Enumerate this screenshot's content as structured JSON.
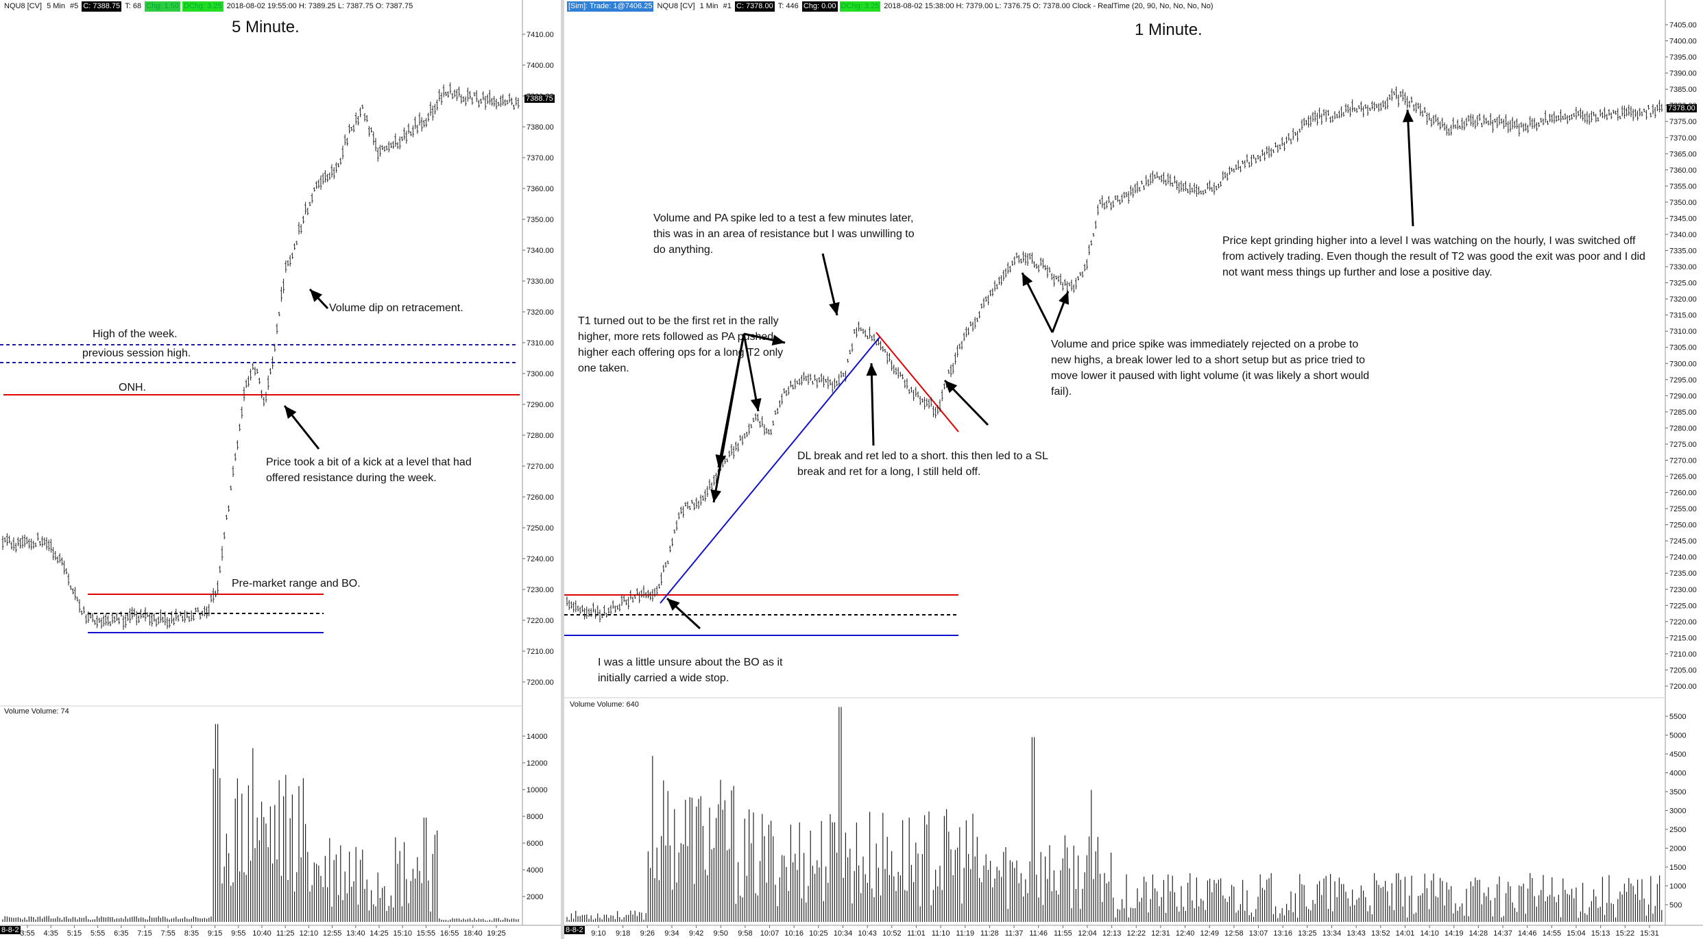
{
  "left": {
    "header": {
      "symbol": "NQU8 [CV]",
      "interval": "5 Min",
      "num": "#5",
      "close": "C: 7388.75",
      "tick": "T: 68",
      "chg": "Chg: 1.50",
      "dchg": "DChg: 3.25",
      "info": "2018-08-02 19:55:00 H: 7389.25 L: 7387.75 O: 7387.75"
    },
    "title": "5 Minute.",
    "last_price": "7388.75",
    "volume_label": "Volume  Volume: 74",
    "date_tag": "8-8-2",
    "price_axis": [
      "7410.00",
      "7400.00",
      "7390.00",
      "7380.00",
      "7370.00",
      "7360.00",
      "7350.00",
      "7340.00",
      "7330.00",
      "7320.00",
      "7310.00",
      "7300.00",
      "7290.00",
      "7280.00",
      "7270.00",
      "7260.00",
      "7250.00",
      "7240.00",
      "7230.00",
      "7220.00",
      "7210.00",
      "7200.00"
    ],
    "volume_axis": [
      "14000",
      "12000",
      "10000",
      "8000",
      "6000",
      "4000",
      "2000"
    ],
    "time_axis": [
      "3:55",
      "4:35",
      "5:15",
      "5:55",
      "6:35",
      "7:15",
      "7:55",
      "8:35",
      "9:15",
      "9:55",
      "10:40",
      "11:25",
      "12:10",
      "12:55",
      "13:40",
      "14:25",
      "15:10",
      "15:55",
      "16:55",
      "18:40",
      "19:25"
    ],
    "notes": {
      "high_week": "High of the week.",
      "prev_session": "previous session high.",
      "onh": "ONH.",
      "volume_dip": "Volume dip on retracement.",
      "kick": "Price took a bit of a kick at a level that had offered resistance during the week.",
      "premarket": "Pre-market range and BO."
    }
  },
  "right": {
    "header": {
      "sim": "[Sim]: Trade: 1@7406.25",
      "symbol": "NQU8 [CV]",
      "interval": "1 Min",
      "num": "#1",
      "close": "C: 7378.00",
      "tick": "T: 446",
      "chg": "Chg: 0.00",
      "dchg": "DChg: 3.25",
      "info": "2018-08-02 15:38:00 H: 7379.00 L: 7376.75 O: 7378.00 Clock - RealTime  (20, 90, No, No, No, No)"
    },
    "title": "1 Minute.",
    "last_price": "7378.00",
    "volume_label": "Volume  Volume: 640",
    "date_tag": "8-8-2",
    "price_axis": [
      "7405.00",
      "7400.00",
      "7395.00",
      "7390.00",
      "7385.00",
      "7380.00",
      "7375.00",
      "7370.00",
      "7365.00",
      "7360.00",
      "7355.00",
      "7350.00",
      "7345.00",
      "7340.00",
      "7335.00",
      "7330.00",
      "7325.00",
      "7320.00",
      "7315.00",
      "7310.00",
      "7305.00",
      "7300.00",
      "7295.00",
      "7290.00",
      "7285.00",
      "7280.00",
      "7275.00",
      "7270.00",
      "7265.00",
      "7260.00",
      "7255.00",
      "7250.00",
      "7245.00",
      "7240.00",
      "7235.00",
      "7230.00",
      "7225.00",
      "7220.00",
      "7215.00",
      "7210.00",
      "7205.00",
      "7200.00"
    ],
    "volume_axis": [
      "5500",
      "5000",
      "4500",
      "4000",
      "3500",
      "3000",
      "2500",
      "2000",
      "1500",
      "1000",
      "500"
    ],
    "time_axis": [
      "9:10",
      "9:18",
      "9:26",
      "9:34",
      "9:42",
      "9:50",
      "9:58",
      "10:07",
      "10:16",
      "10:25",
      "10:34",
      "10:43",
      "10:52",
      "11:01",
      "11:10",
      "11:19",
      "11:28",
      "11:37",
      "11:46",
      "11:55",
      "12:04",
      "12:13",
      "12:22",
      "12:31",
      "12:40",
      "12:49",
      "12:58",
      "13:07",
      "13:16",
      "13:25",
      "13:34",
      "13:43",
      "13:52",
      "14:01",
      "14:10",
      "14:19",
      "14:28",
      "14:37",
      "14:46",
      "14:55",
      "15:04",
      "15:13",
      "15:22",
      "15:31"
    ],
    "notes": {
      "volume_pa": "Volume and PA spike led to a test a few minutes later, this was in an area of resistance but I was unwilling to do anything.",
      "t1": "T1 turned out to be the first ret in the rally higher, more rets followed as PA pushed higher each offering ops for a long T2 only one taken.",
      "dl_break": "DL break and ret led to a short. this then led to a SL break  and ret for a long, I still held off.",
      "unsure_bo": "I was a little unsure about the BO as it initially carried a wide stop.",
      "volume_price": "Volume and price spike was immediately rejected on a probe to new highs, a break lower led to a short setup but as price tried to move lower it paused with light volume (it was likely a short would fail).",
      "grinding": "Price kept grinding higher into a level I was watching on the hourly, I was switched off from actively trading.  Even though the result of T2 was good the exit was poor and I did not want mess things up further and lose a positive day."
    }
  },
  "colors": {
    "red_line": "#e00000",
    "blue_line": "#1010d0",
    "dash_blue": "#1a1aa8",
    "bars": "#222222"
  }
}
